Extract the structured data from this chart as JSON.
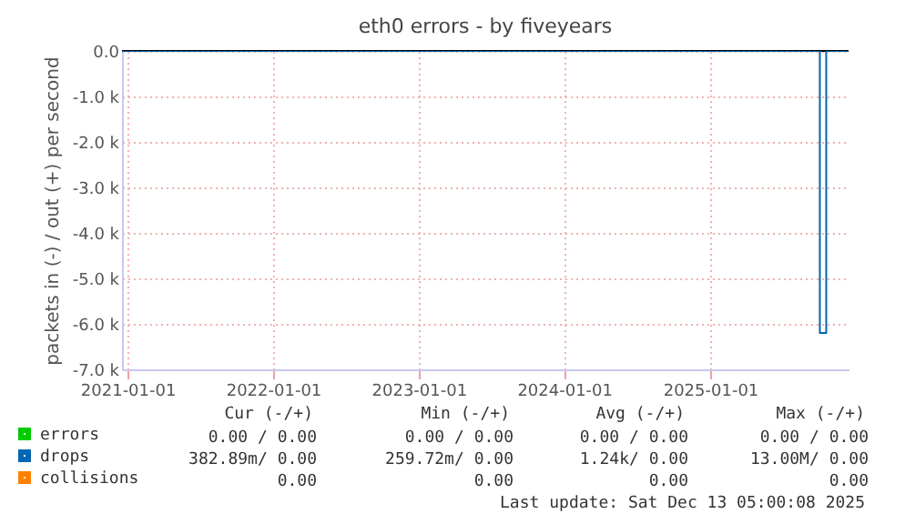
{
  "chart_data": {
    "type": "line",
    "title": "eth0 errors - by fiveyears",
    "ylabel": "packets in (-) / out (+) per second",
    "x": [
      "2020-12-18",
      "2025-10-03",
      "2025-10-03",
      "2025-10-19",
      "2025-10-19",
      "2025-12-13"
    ],
    "series": [
      {
        "name": "errors",
        "color": "#00cc00",
        "values": [
          null,
          null,
          null,
          null,
          null,
          null
        ]
      },
      {
        "name": "drops",
        "color": "#0066b3",
        "values": [
          0,
          0,
          -6200,
          -6200,
          0,
          0
        ]
      },
      {
        "name": "collisions",
        "color": "#ff8000",
        "values": [
          null,
          null,
          null,
          null,
          null,
          null
        ]
      }
    ],
    "xlim": [
      "2020-12-18",
      "2025-12-14"
    ],
    "xticks": [
      "2021-01-01",
      "2022-01-01",
      "2023-01-01",
      "2024-01-01",
      "2025-01-01"
    ],
    "ylim": [
      -7000,
      0
    ],
    "yticks": [
      {
        "value": 0,
        "label": "0.0"
      },
      {
        "value": -1000,
        "label": "-1.0 k"
      },
      {
        "value": -2000,
        "label": "-2.0 k"
      },
      {
        "value": -3000,
        "label": "-3.0 k"
      },
      {
        "value": -4000,
        "label": "-4.0 k"
      },
      {
        "value": -5000,
        "label": "-5.0 k"
      },
      {
        "value": -6000,
        "label": "-6.0 k"
      },
      {
        "value": -7000,
        "label": "-7.0 k"
      }
    ],
    "grid": true,
    "legend": "bottom left",
    "annotations": [
      "Cur (-/+)",
      "Min (-/+)",
      "Avg (-/+)",
      "Max (-/+)",
      "0.00 /  0.00",
      "0.00 /  0.00",
      "0.00 /  0.00",
      "0.00 /  0.00",
      "382.89m/  0.00",
      "259.72m/  0.00",
      "1.24k/  0.00",
      "13.00M/  0.00",
      "0.00",
      "0.00",
      "0.00",
      "0.00",
      "Last update: Sat Dec 13 05:00:08 2025"
    ]
  }
}
